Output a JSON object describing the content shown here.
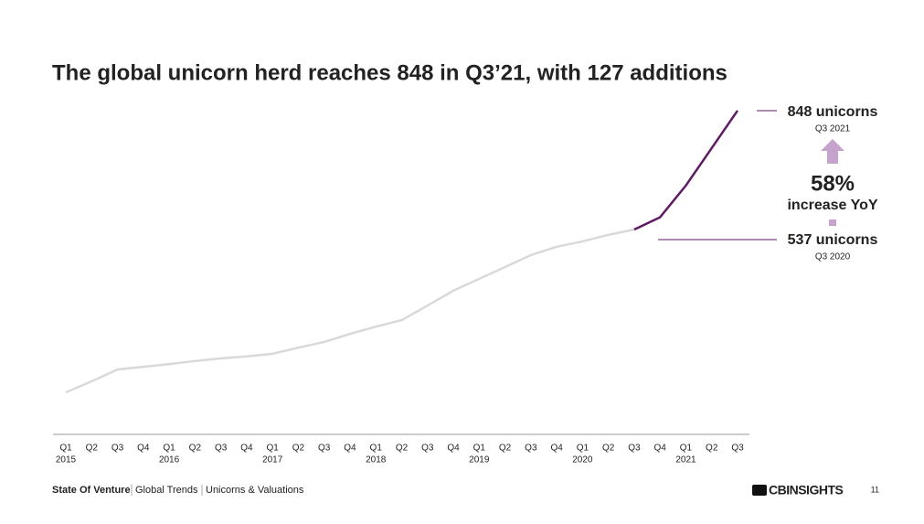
{
  "chart_data": {
    "type": "line",
    "title": "The global unicorn herd reaches 848 in Q3’21, with 127 additions",
    "categories": [
      "Q1",
      "Q2",
      "Q3",
      "Q4",
      "Q1",
      "Q2",
      "Q3",
      "Q4",
      "Q1",
      "Q2",
      "Q3",
      "Q4",
      "Q1",
      "Q2",
      "Q3",
      "Q4",
      "Q1",
      "Q2",
      "Q3",
      "Q4",
      "Q1",
      "Q2",
      "Q3",
      "Q4",
      "Q1",
      "Q2",
      "Q3"
    ],
    "category_years": [
      "2015",
      null,
      null,
      null,
      "2016",
      null,
      null,
      null,
      "2017",
      null,
      null,
      null,
      "2018",
      null,
      null,
      null,
      "2019",
      null,
      null,
      null,
      "2020",
      null,
      null,
      null,
      "2021",
      null,
      null
    ],
    "series": [
      {
        "color": "#d9d9d9",
        "values": [
          111,
          140,
          171,
          178,
          185,
          193,
          200,
          205,
          212,
          228,
          243,
          264,
          283,
          300,
          338,
          377,
          408,
          439,
          470,
          492,
          506,
          523,
          537,
          null,
          null,
          null,
          null
        ]
      },
      {
        "color": "#5e1a63",
        "values": [
          null,
          null,
          null,
          null,
          null,
          null,
          null,
          null,
          null,
          null,
          null,
          null,
          null,
          null,
          null,
          null,
          null,
          null,
          null,
          null,
          null,
          null,
          537,
          569,
          652,
          750,
          848
        ]
      }
    ],
    "ylim": [
      0,
      900
    ],
    "annotations": {
      "top_value": "848 unicorns",
      "top_period": "Q3 2021",
      "change": "58%",
      "change_text": "increase YoY",
      "bottom_value": "537 unicorns",
      "bottom_period": "Q3 2020"
    }
  },
  "footer": {
    "report": "State Of Venture",
    "section": "Global Trends",
    "topic": "Unicorns & Valuations",
    "logo": "CBINSIGHTS",
    "page": "11"
  }
}
